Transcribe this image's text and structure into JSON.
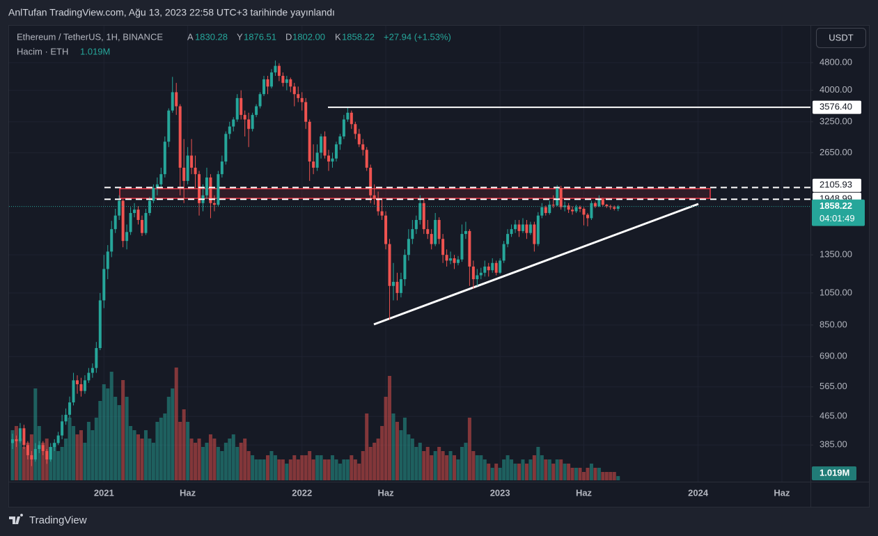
{
  "header": {
    "title": "AnlTufan TradingView.com, Ağu 13, 2023 22:58 UTC+3 tarihinde yayınlandı",
    "brand": "TradingView"
  },
  "chart_data": {
    "type": "candlestick",
    "currency": "USDT",
    "legend": {
      "symbol": "Ethereum / TetherUS, 1H, BINANCE",
      "o_key": "A",
      "o": "1830.28",
      "h_key": "Y",
      "h": "1876.51",
      "l_key": "D",
      "l": "1802.00",
      "c_key": "K",
      "c": "1858.22",
      "change": "+27.94 (+1.53%)",
      "volume_key": "Hacim · ETH"
    },
    "log_scale": true,
    "grid": true,
    "up_color": "#26a69a",
    "down_color": "#ef5350",
    "ylim": [
      305,
      6040
    ],
    "yticks": [
      {
        "value": 4800,
        "label": "4800.00"
      },
      {
        "value": 4000,
        "label": "4000.00"
      },
      {
        "value": 3250,
        "label": "3250.00"
      },
      {
        "value": 2650,
        "label": "2650.00"
      },
      {
        "value": 1350,
        "label": "1350.00"
      },
      {
        "value": 1050,
        "label": "1050.00"
      },
      {
        "value": 850,
        "label": "850.00"
      },
      {
        "value": 690,
        "label": "690.00"
      },
      {
        "value": 565,
        "label": "565.00"
      },
      {
        "value": 465,
        "label": "465.00"
      },
      {
        "value": 385,
        "label": "385.00"
      }
    ],
    "vlim": [
      0,
      30
    ],
    "levels": [
      {
        "price": {
          "value": 3576.4,
          "label": "3576.40"
        },
        "style": "solid"
      },
      {
        "price": 2105.93,
        "style": "dashed"
      },
      {
        "price": 1948.99,
        "style": "dashed"
      }
    ],
    "last_price": 1858.22,
    "countdown": "04:01:49",
    "volume_label": "1.019M",
    "categories": [
      null,
      null,
      null,
      null,
      null,
      null,
      null,
      null,
      null,
      null,
      null,
      null,
      null,
      null,
      null,
      null,
      null,
      null,
      null,
      null,
      null,
      null,
      null,
      null,
      "2021",
      null,
      null,
      null,
      null,
      null,
      null,
      null,
      null,
      null,
      null,
      null,
      null,
      null,
      null,
      null,
      null,
      null,
      null,
      null,
      null,
      null,
      "Haz",
      null,
      null,
      null,
      null,
      null,
      null,
      null,
      null,
      null,
      null,
      null,
      null,
      null,
      null,
      null,
      null,
      null,
      null,
      null,
      null,
      null,
      null,
      null,
      null,
      null,
      null,
      null,
      null,
      null,
      "2022",
      null,
      null,
      null,
      null,
      null,
      null,
      null,
      null,
      null,
      null,
      null,
      null,
      null,
      null,
      null,
      null,
      null,
      null,
      null,
      null,
      null,
      "Haz",
      null,
      null,
      null,
      null,
      null,
      null,
      null,
      null,
      null,
      null,
      null,
      null,
      null,
      null,
      null,
      null,
      null,
      null,
      null,
      null,
      null,
      null,
      null,
      null,
      null,
      null,
      null,
      null,
      null,
      "2023",
      null,
      null,
      null,
      null,
      null,
      null,
      null,
      null,
      null,
      null,
      null,
      null,
      null,
      null,
      null,
      null,
      null,
      null,
      null,
      null,
      null,
      "Haz",
      null,
      null,
      null,
      null,
      null,
      null,
      null,
      null,
      null,
      null,
      null,
      null,
      null,
      null,
      null,
      null,
      null,
      null,
      null,
      null,
      null,
      null,
      null,
      null,
      null,
      null,
      null,
      null,
      null,
      "2024",
      null,
      null,
      null,
      null,
      null,
      null,
      null,
      null,
      null,
      null,
      null,
      null,
      null,
      null,
      null,
      null,
      null,
      null,
      null,
      null,
      null,
      "Haz"
    ],
    "ohlc": [
      [
        390,
        415,
        375,
        400
      ],
      [
        400,
        410,
        380,
        395
      ],
      [
        395,
        445,
        390,
        430
      ],
      [
        430,
        440,
        375,
        385
      ],
      [
        385,
        395,
        350,
        360
      ],
      [
        360,
        370,
        335,
        350
      ],
      [
        350,
        390,
        345,
        375
      ],
      [
        375,
        395,
        365,
        385
      ],
      [
        385,
        395,
        360,
        370
      ],
      [
        370,
        375,
        340,
        350
      ],
      [
        350,
        390,
        345,
        380
      ],
      [
        380,
        400,
        370,
        390
      ],
      [
        390,
        420,
        385,
        410
      ],
      [
        410,
        470,
        400,
        450
      ],
      [
        450,
        490,
        440,
        470
      ],
      [
        470,
        530,
        460,
        510
      ],
      [
        510,
        620,
        500,
        590
      ],
      [
        590,
        610,
        540,
        575
      ],
      [
        575,
        600,
        530,
        550
      ],
      [
        550,
        610,
        540,
        590
      ],
      [
        590,
        640,
        580,
        620
      ],
      [
        620,
        660,
        600,
        640
      ],
      [
        640,
        760,
        620,
        730
      ],
      [
        730,
        1050,
        720,
        1000
      ],
      [
        1000,
        1350,
        950,
        1230
      ],
      [
        1230,
        1440,
        1150,
        1380
      ],
      [
        1380,
        1690,
        1330,
        1600
      ],
      [
        1600,
        1830,
        1560,
        1750
      ],
      [
        1750,
        2000,
        1700,
        1930
      ],
      [
        1930,
        1950,
        1420,
        1480
      ],
      [
        1480,
        1650,
        1400,
        1570
      ],
      [
        1570,
        1850,
        1540,
        1780
      ],
      [
        1780,
        1900,
        1730,
        1820
      ],
      [
        1820,
        1860,
        1650,
        1700
      ],
      [
        1700,
        1750,
        1530,
        1560
      ],
      [
        1560,
        1830,
        1540,
        1780
      ],
      [
        1780,
        1980,
        1750,
        1930
      ],
      [
        1930,
        2150,
        1900,
        2100
      ],
      [
        2100,
        2250,
        2000,
        2150
      ],
      [
        2150,
        2400,
        2100,
        2300
      ],
      [
        2300,
        2950,
        2250,
        2850
      ],
      [
        2850,
        3550,
        2750,
        3500
      ],
      [
        3500,
        4370,
        3450,
        3950
      ],
      [
        3950,
        4200,
        3400,
        3600
      ],
      [
        3600,
        3650,
        2000,
        2400
      ],
      [
        2400,
        2900,
        1900,
        2200
      ],
      [
        2200,
        2750,
        2150,
        2600
      ],
      [
        2600,
        2900,
        2300,
        2400
      ],
      [
        2400,
        2600,
        2100,
        2300
      ],
      [
        2300,
        2350,
        1750,
        1900
      ],
      [
        1900,
        2150,
        1800,
        2000
      ],
      [
        2000,
        2400,
        1950,
        2250
      ],
      [
        2250,
        2300,
        1720,
        1900
      ],
      [
        1900,
        2000,
        1800,
        1880
      ],
      [
        1880,
        2350,
        1860,
        2300
      ],
      [
        2300,
        2600,
        2250,
        2500
      ],
      [
        2500,
        3050,
        2450,
        3000
      ],
      [
        3000,
        3250,
        2900,
        3150
      ],
      [
        3150,
        3350,
        3050,
        3300
      ],
      [
        3300,
        3900,
        3250,
        3800
      ],
      [
        3800,
        4000,
        3300,
        3400
      ],
      [
        3400,
        3500,
        2950,
        3300
      ],
      [
        3300,
        3450,
        2750,
        3100
      ],
      [
        3100,
        3450,
        3050,
        3400
      ],
      [
        3400,
        3650,
        3350,
        3600
      ],
      [
        3600,
        3950,
        3550,
        3900
      ],
      [
        3900,
        4400,
        3850,
        4300
      ],
      [
        4300,
        4400,
        3900,
        4100
      ],
      [
        4100,
        4600,
        4050,
        4500
      ],
      [
        4500,
        4870,
        4400,
        4700
      ],
      [
        4700,
        4780,
        4250,
        4400
      ],
      [
        4400,
        4500,
        4100,
        4200
      ],
      [
        4200,
        4400,
        4000,
        4300
      ],
      [
        4300,
        4350,
        3950,
        4100
      ],
      [
        4100,
        4200,
        3600,
        3900
      ],
      [
        3900,
        4100,
        3700,
        3800
      ],
      [
        3800,
        3950,
        3500,
        3700
      ],
      [
        3700,
        3800,
        3100,
        3250
      ],
      [
        3250,
        3300,
        2200,
        2500
      ],
      [
        2500,
        2800,
        2300,
        2400
      ],
      [
        2400,
        2800,
        2350,
        2650
      ],
      [
        2650,
        3000,
        2550,
        2950
      ],
      [
        2950,
        3050,
        2550,
        2600
      ],
      [
        2600,
        2700,
        2350,
        2500
      ],
      [
        2500,
        2650,
        2400,
        2550
      ],
      [
        2550,
        2850,
        2500,
        2800
      ],
      [
        2800,
        3000,
        2700,
        2950
      ],
      [
        2950,
        3400,
        2900,
        3300
      ],
      [
        3300,
        3580,
        3250,
        3450
      ],
      [
        3450,
        3500,
        3100,
        3200
      ],
      [
        3200,
        3250,
        2900,
        3000
      ],
      [
        3000,
        3100,
        2750,
        2800
      ],
      [
        2800,
        2900,
        2600,
        2700
      ],
      [
        2700,
        2750,
        2350,
        2400
      ],
      [
        2400,
        2450,
        1900,
        2000
      ],
      [
        2000,
        2150,
        1880,
        1950
      ],
      [
        1950,
        2050,
        1750,
        1800
      ],
      [
        1800,
        1950,
        1700,
        1750
      ],
      [
        1750,
        1800,
        1400,
        1450
      ],
      [
        1450,
        1500,
        880,
        1100
      ],
      [
        1100,
        1280,
        1000,
        1130
      ],
      [
        1130,
        1200,
        1000,
        1050
      ],
      [
        1050,
        1200,
        1020,
        1150
      ],
      [
        1150,
        1400,
        1100,
        1350
      ],
      [
        1350,
        1600,
        1300,
        1500
      ],
      [
        1500,
        1700,
        1450,
        1600
      ],
      [
        1600,
        1750,
        1550,
        1700
      ],
      [
        1700,
        2000,
        1650,
        1900
      ],
      [
        1900,
        1950,
        1550,
        1600
      ],
      [
        1600,
        1700,
        1500,
        1550
      ],
      [
        1550,
        1600,
        1400,
        1450
      ],
      [
        1450,
        1780,
        1430,
        1700
      ],
      [
        1700,
        1730,
        1450,
        1500
      ],
      [
        1500,
        1550,
        1280,
        1350
      ],
      [
        1350,
        1400,
        1250,
        1300
      ],
      [
        1300,
        1380,
        1270,
        1320
      ],
      [
        1320,
        1350,
        1230,
        1280
      ],
      [
        1280,
        1340,
        1260,
        1310
      ],
      [
        1310,
        1650,
        1290,
        1550
      ],
      [
        1550,
        1680,
        1500,
        1580
      ],
      [
        1580,
        1600,
        1100,
        1250
      ],
      [
        1250,
        1300,
        1080,
        1150
      ],
      [
        1150,
        1230,
        1100,
        1180
      ],
      [
        1180,
        1240,
        1150,
        1200
      ],
      [
        1200,
        1300,
        1170,
        1250
      ],
      [
        1250,
        1280,
        1170,
        1220
      ],
      [
        1220,
        1320,
        1200,
        1280
      ],
      [
        1280,
        1300,
        1180,
        1200
      ],
      [
        1200,
        1320,
        1190,
        1300
      ],
      [
        1300,
        1480,
        1280,
        1450
      ],
      [
        1450,
        1600,
        1420,
        1550
      ],
      [
        1550,
        1650,
        1520,
        1600
      ],
      [
        1600,
        1700,
        1560,
        1650
      ],
      [
        1650,
        1700,
        1520,
        1580
      ],
      [
        1580,
        1720,
        1560,
        1650
      ],
      [
        1650,
        1700,
        1500,
        1560
      ],
      [
        1560,
        1680,
        1540,
        1650
      ],
      [
        1650,
        1680,
        1380,
        1450
      ],
      [
        1450,
        1790,
        1430,
        1750
      ],
      [
        1750,
        1900,
        1720,
        1850
      ],
      [
        1850,
        1870,
        1750,
        1780
      ],
      [
        1780,
        1930,
        1760,
        1880
      ],
      [
        1880,
        2000,
        1840,
        1870
      ],
      [
        1870,
        2140,
        1860,
        2100
      ],
      [
        2100,
        2130,
        1820,
        1850
      ],
      [
        1850,
        1920,
        1800,
        1870
      ],
      [
        1870,
        1900,
        1780,
        1820
      ],
      [
        1820,
        1860,
        1760,
        1800
      ],
      [
        1800,
        1880,
        1780,
        1850
      ],
      [
        1850,
        1870,
        1790,
        1830
      ],
      [
        1830,
        1850,
        1640,
        1760
      ],
      [
        1760,
        1780,
        1630,
        1720
      ],
      [
        1720,
        1930,
        1700,
        1900
      ],
      [
        1900,
        1920,
        1840,
        1860
      ],
      [
        1860,
        2000,
        1850,
        1950
      ],
      [
        1950,
        1970,
        1860,
        1880
      ],
      [
        1880,
        1890,
        1840,
        1860
      ],
      [
        1860,
        1880,
        1820,
        1850
      ],
      [
        1850,
        1870,
        1810,
        1830.28
      ],
      [
        1830.28,
        1876.51,
        1802,
        1858.22
      ],
      null,
      null,
      null,
      null,
      null,
      null,
      null,
      null,
      null,
      null,
      null,
      null,
      null,
      null,
      null,
      null,
      null,
      null,
      null,
      null,
      null,
      null,
      null,
      null,
      null,
      null,
      null,
      null,
      null,
      null,
      null,
      null,
      null,
      null,
      null,
      null,
      null,
      null,
      null,
      null,
      null,
      null,
      null
    ],
    "volume": [
      12,
      13,
      10,
      8,
      9,
      11,
      22,
      13,
      9,
      10,
      8,
      9,
      7,
      8,
      10,
      15,
      13,
      11,
      12,
      9,
      14,
      12,
      15,
      19,
      23,
      22,
      26,
      20,
      18,
      24,
      20,
      13,
      12,
      11,
      10,
      12,
      10,
      9,
      14,
      15,
      16,
      20,
      22,
      27,
      14,
      17,
      14,
      10,
      9,
      10,
      8,
      9,
      11,
      10,
      8,
      7,
      9,
      10,
      11,
      8,
      9,
      10,
      7,
      6,
      5,
      5,
      5,
      6,
      7,
      6,
      5,
      5,
      4,
      5,
      6,
      5,
      6,
      6,
      7,
      5,
      6,
      6,
      5,
      5,
      6,
      5,
      4,
      5,
      5,
      6,
      5,
      4,
      7,
      16,
      8,
      9,
      10,
      13,
      20,
      25,
      16,
      14,
      12,
      15,
      11,
      10,
      8,
      9,
      7,
      8,
      6,
      7,
      8,
      7,
      6,
      7,
      6,
      5,
      8,
      9,
      15,
      7,
      6,
      6,
      5,
      4,
      3,
      4,
      3,
      5,
      6,
      5,
      4,
      4,
      5,
      4,
      5,
      6,
      8,
      6,
      5,
      5,
      4,
      5,
      5,
      4,
      4,
      3,
      3,
      3,
      2,
      3,
      4,
      3,
      3,
      2,
      2,
      2,
      2,
      1.019,
      null,
      null,
      null,
      null,
      null,
      null,
      null,
      null,
      null,
      null,
      null,
      null,
      null,
      null,
      null,
      null,
      null,
      null,
      null,
      null,
      null,
      null,
      null,
      null,
      null,
      null,
      null,
      null,
      null,
      null,
      null,
      null,
      null,
      null,
      null,
      null,
      null,
      null,
      null,
      null,
      null,
      null,
      null
    ]
  }
}
